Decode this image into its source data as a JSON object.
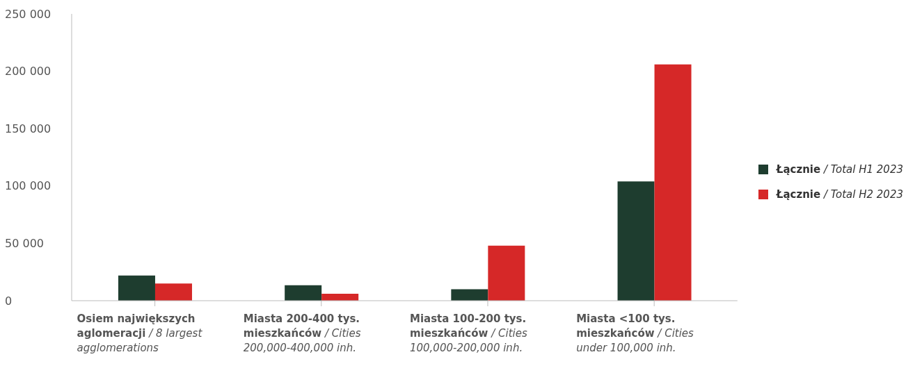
{
  "chart_data": {
    "type": "bar",
    "categories": [
      "Osiem największych aglomeracji / 8 largest agglomerations",
      "Miasta 200-400 tys. mieszkańców / Cities 200,000-400,000 inh.",
      "Miasta 100-200 tys. mieszkańców / Cities 100,000-200,000 inh.",
      "Miasta <100 tys. mieszkańców / Cities under 100,000 inh."
    ],
    "series": [
      {
        "name": "Łącznie / Total H1 2023",
        "color": "#1e3d2f",
        "values": [
          22000,
          13500,
          10000,
          104000
        ]
      },
      {
        "name": "Łącznie / Total H2 2023",
        "color": "#d62828",
        "values": [
          15000,
          6000,
          48000,
          206000
        ]
      }
    ],
    "ylim": [
      0,
      250000
    ],
    "yticks": [
      {
        "value": 0,
        "label": "0"
      },
      {
        "value": 50000,
        "label": "50 000"
      },
      {
        "value": 100000,
        "label": "100 000"
      },
      {
        "value": 150000,
        "label": "150 000"
      },
      {
        "value": 200000,
        "label": "200 000"
      },
      {
        "value": 250000,
        "label": "250 000"
      }
    ],
    "grid": false,
    "legend": "right"
  }
}
